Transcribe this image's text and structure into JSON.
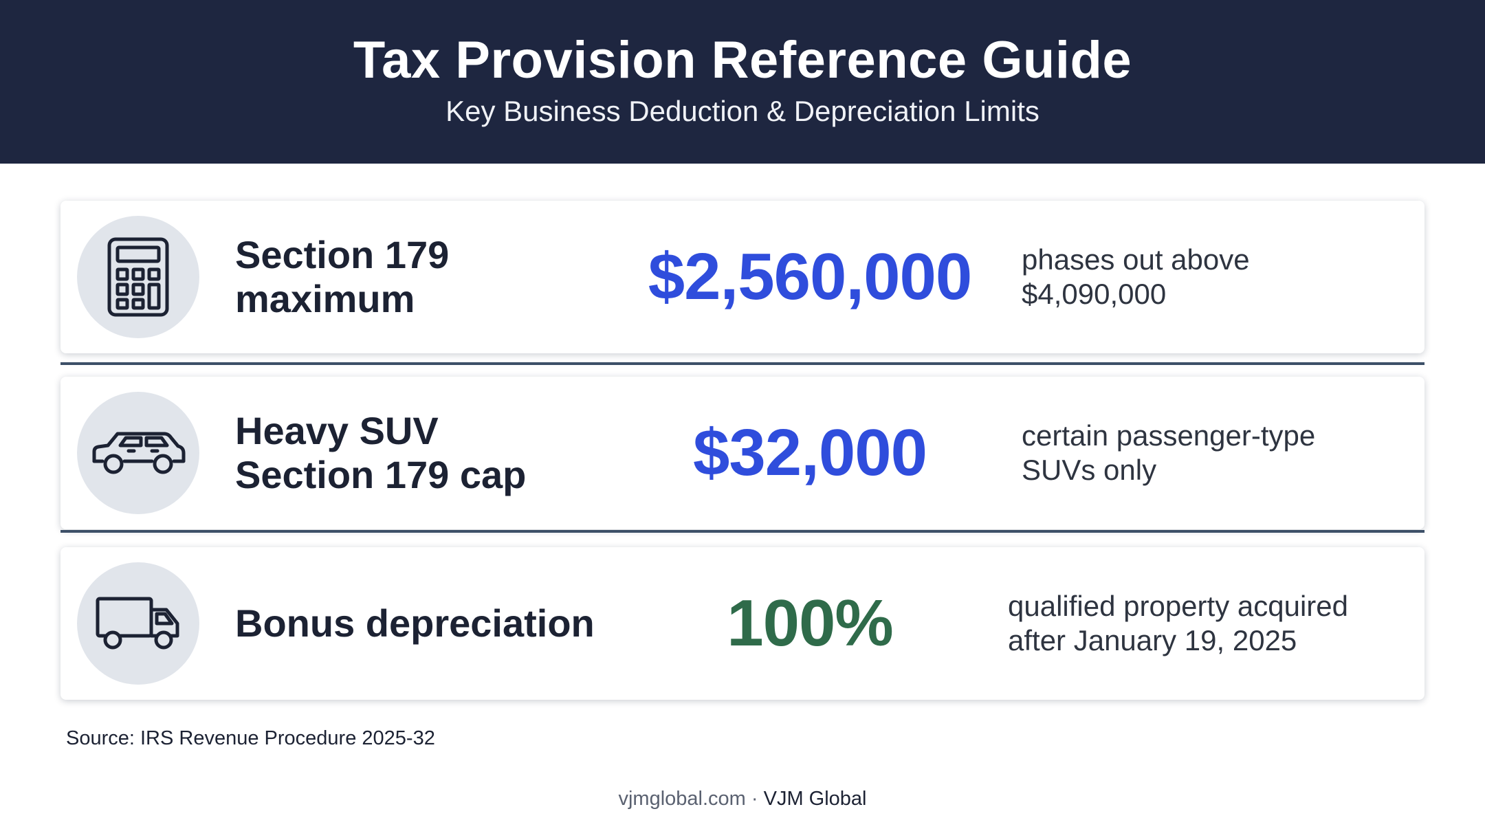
{
  "header": {
    "title": "Tax Provision Reference Guide",
    "subtitle": "Key Business Deduction & Depreciation Limits"
  },
  "rows": [
    {
      "icon": "calculator-icon",
      "label_line1": "Section 179",
      "label_line2": "maximum",
      "value": "$2,560,000",
      "value_color": "#2f4ddc",
      "note_line1": "phases out above",
      "note_line2": "$4,090,000"
    },
    {
      "icon": "suv-icon",
      "label_line1": "Heavy SUV",
      "label_line2": "Section 179 cap",
      "value": "$32,000",
      "value_color": "#2f4ddc",
      "note_line1": "certain passenger-type",
      "note_line2": "SUVs only"
    },
    {
      "icon": "truck-icon",
      "label_line1": "Bonus depreciation",
      "value": "100%",
      "value_color": "#2f6b4a",
      "note_line1": "qualified property acquired",
      "note_line2": "after January 19, 2025"
    }
  ],
  "source": "Source: IRS Revenue Procedure 2025-32",
  "footer": {
    "site": "vjmglobal.com",
    "separator": " · ",
    "brand": "VJM Global"
  },
  "colors": {
    "header_bg": "#1e2640",
    "accent_blue": "#2f4ddc",
    "accent_green": "#2f6b4a",
    "divider": "#3d5068"
  }
}
